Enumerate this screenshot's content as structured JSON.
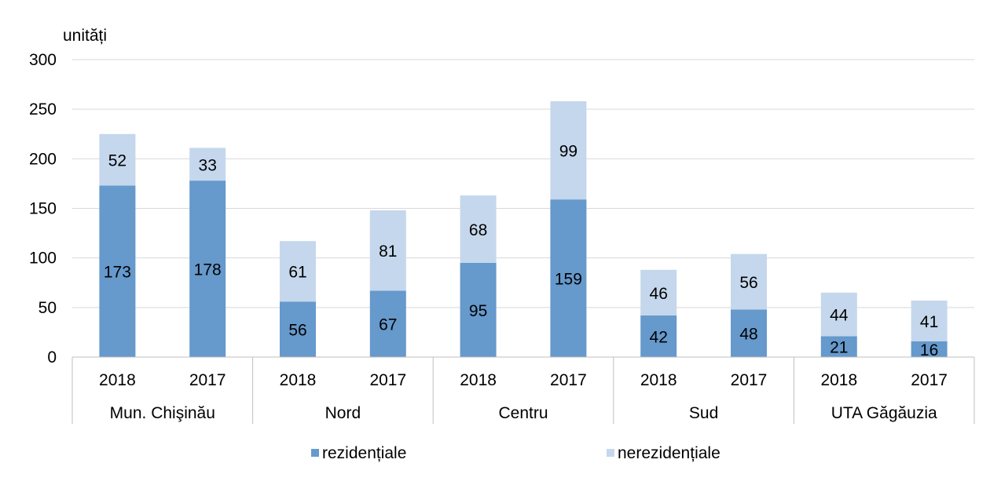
{
  "chart_data": {
    "type": "bar",
    "stacked": true,
    "ylabel": "unități",
    "ylim": [
      0,
      300
    ],
    "yticks": [
      "0",
      "50",
      "100",
      "150",
      "200",
      "250",
      "300"
    ],
    "groups": [
      "Mun. Chişinău",
      "Nord",
      "Centru",
      "Sud",
      "UTA Găgăuzia"
    ],
    "categories": [
      "2018",
      "2017",
      "2018",
      "2017",
      "2018",
      "2017",
      "2018",
      "2017",
      "2018",
      "2017"
    ],
    "series": [
      {
        "name": "rezidențiale",
        "color": "#6699cc",
        "values": [
          173,
          178,
          56,
          67,
          95,
          159,
          42,
          48,
          21,
          16
        ]
      },
      {
        "name": "nerezidențiale",
        "color": "#c5d7ec",
        "values": [
          52,
          33,
          61,
          81,
          68,
          99,
          46,
          56,
          44,
          41
        ]
      }
    ],
    "grid": true,
    "legend": "bottom"
  }
}
